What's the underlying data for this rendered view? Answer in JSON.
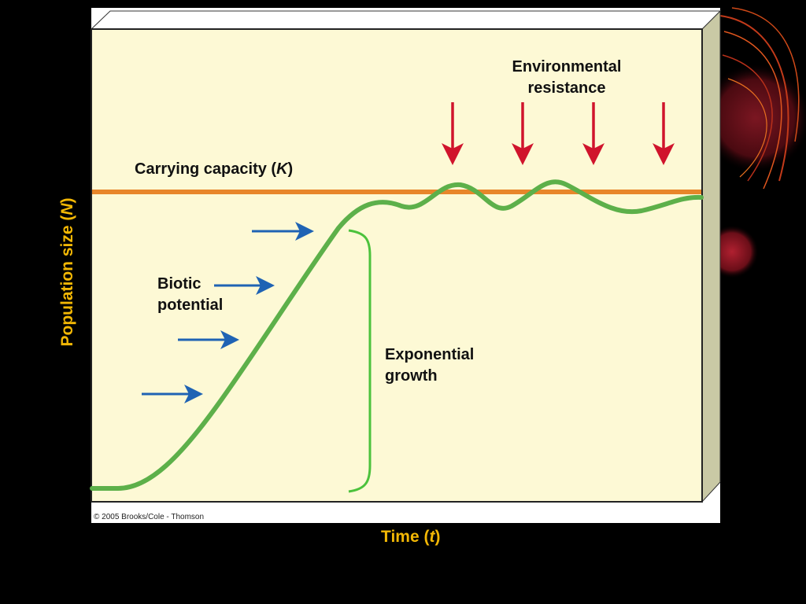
{
  "labels": {
    "environmental_resistance": [
      "Environmental",
      "resistance"
    ],
    "carrying_capacity_prefix": "Carrying capacity (",
    "carrying_capacity_symbol": "K",
    "carrying_capacity_suffix": ")",
    "biotic_potential": [
      "Biotic",
      "potential"
    ],
    "exponential_growth": [
      "Exponential",
      "growth"
    ],
    "copyright": "© 2005 Brooks/Cole - Thomson"
  },
  "axes": {
    "y_prefix": "Population size (",
    "y_symbol": "N",
    "y_suffix": ")",
    "x_prefix": "Time (",
    "x_symbol": "t",
    "x_suffix": ")"
  },
  "colors": {
    "panel": "#fdf9d5",
    "panel_side": "#c9c9a5",
    "capacity_line": "#e8862a",
    "curve": "#5db04a",
    "brace": "#4cc23c",
    "resistance_arrow": "#d0142c",
    "biotic_arrow": "#1f63b4",
    "axis_text": "#f2b705"
  }
}
